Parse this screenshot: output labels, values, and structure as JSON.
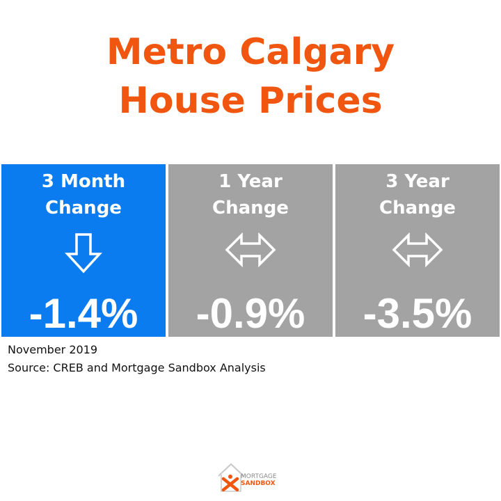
{
  "title": {
    "line1": "Metro Calgary",
    "line2": "House Prices"
  },
  "colors": {
    "title": "#f0560f",
    "highlight_tile": "#0a7cf0",
    "neutral_tile": "#a3a3a3",
    "logo_orange": "#f0560f"
  },
  "tiles": [
    {
      "label_line1": "3 Month",
      "label_line2": "Change",
      "icon": "down-arrow-icon",
      "value": "-1.4%"
    },
    {
      "label_line1": "1 Year",
      "label_line2": "Change",
      "icon": "left-right-arrow-icon",
      "value": "-0.9%"
    },
    {
      "label_line1": "3 Year",
      "label_line2": "Change",
      "icon": "left-right-arrow-icon",
      "value": "-3.5%"
    }
  ],
  "footnote": {
    "date": "November 2019",
    "source": "Source: CREB and Mortgage Sandbox Analysis"
  },
  "logo": {
    "line1": "MORTGAGE",
    "line2": "SANDBOX"
  }
}
